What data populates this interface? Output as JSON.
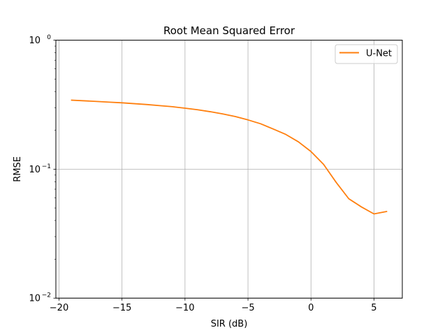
{
  "chart_data": {
    "type": "line",
    "title": "Root Mean Squared Error",
    "xlabel": "SIR (dB)",
    "ylabel": "RMSE",
    "xlim": [
      -20.25,
      7.25
    ],
    "ylim": [
      0.01,
      1
    ],
    "yscale": "log",
    "grid": true,
    "legend_position": "top-right",
    "x_ticks": [
      -20,
      -15,
      -10,
      -5,
      0,
      5
    ],
    "x_tick_labels": [
      "−20",
      "−15",
      "−10",
      "−5",
      "0",
      "5"
    ],
    "y_ticks": [
      0.01,
      0.1,
      1
    ],
    "y_tick_labels": [
      {
        "base": "10",
        "exp": "−2"
      },
      {
        "base": "10",
        "exp": "−1"
      },
      {
        "base": "10",
        "exp": "0"
      }
    ],
    "series": [
      {
        "name": "U-Net",
        "color": "#ff7f0e",
        "x": [
          -19,
          -18,
          -17,
          -16,
          -15,
          -14,
          -13,
          -12,
          -11,
          -10,
          -9,
          -8,
          -7,
          -6,
          -5,
          -4,
          -3,
          -2,
          -1,
          0,
          1,
          2,
          3,
          4,
          5,
          6
        ],
        "y": [
          0.343,
          0.339,
          0.335,
          0.331,
          0.327,
          0.322,
          0.317,
          0.311,
          0.305,
          0.297,
          0.289,
          0.279,
          0.268,
          0.256,
          0.241,
          0.225,
          0.205,
          0.186,
          0.163,
          0.137,
          0.109,
          0.079,
          0.059,
          0.051,
          0.045,
          0.047
        ]
      }
    ]
  }
}
